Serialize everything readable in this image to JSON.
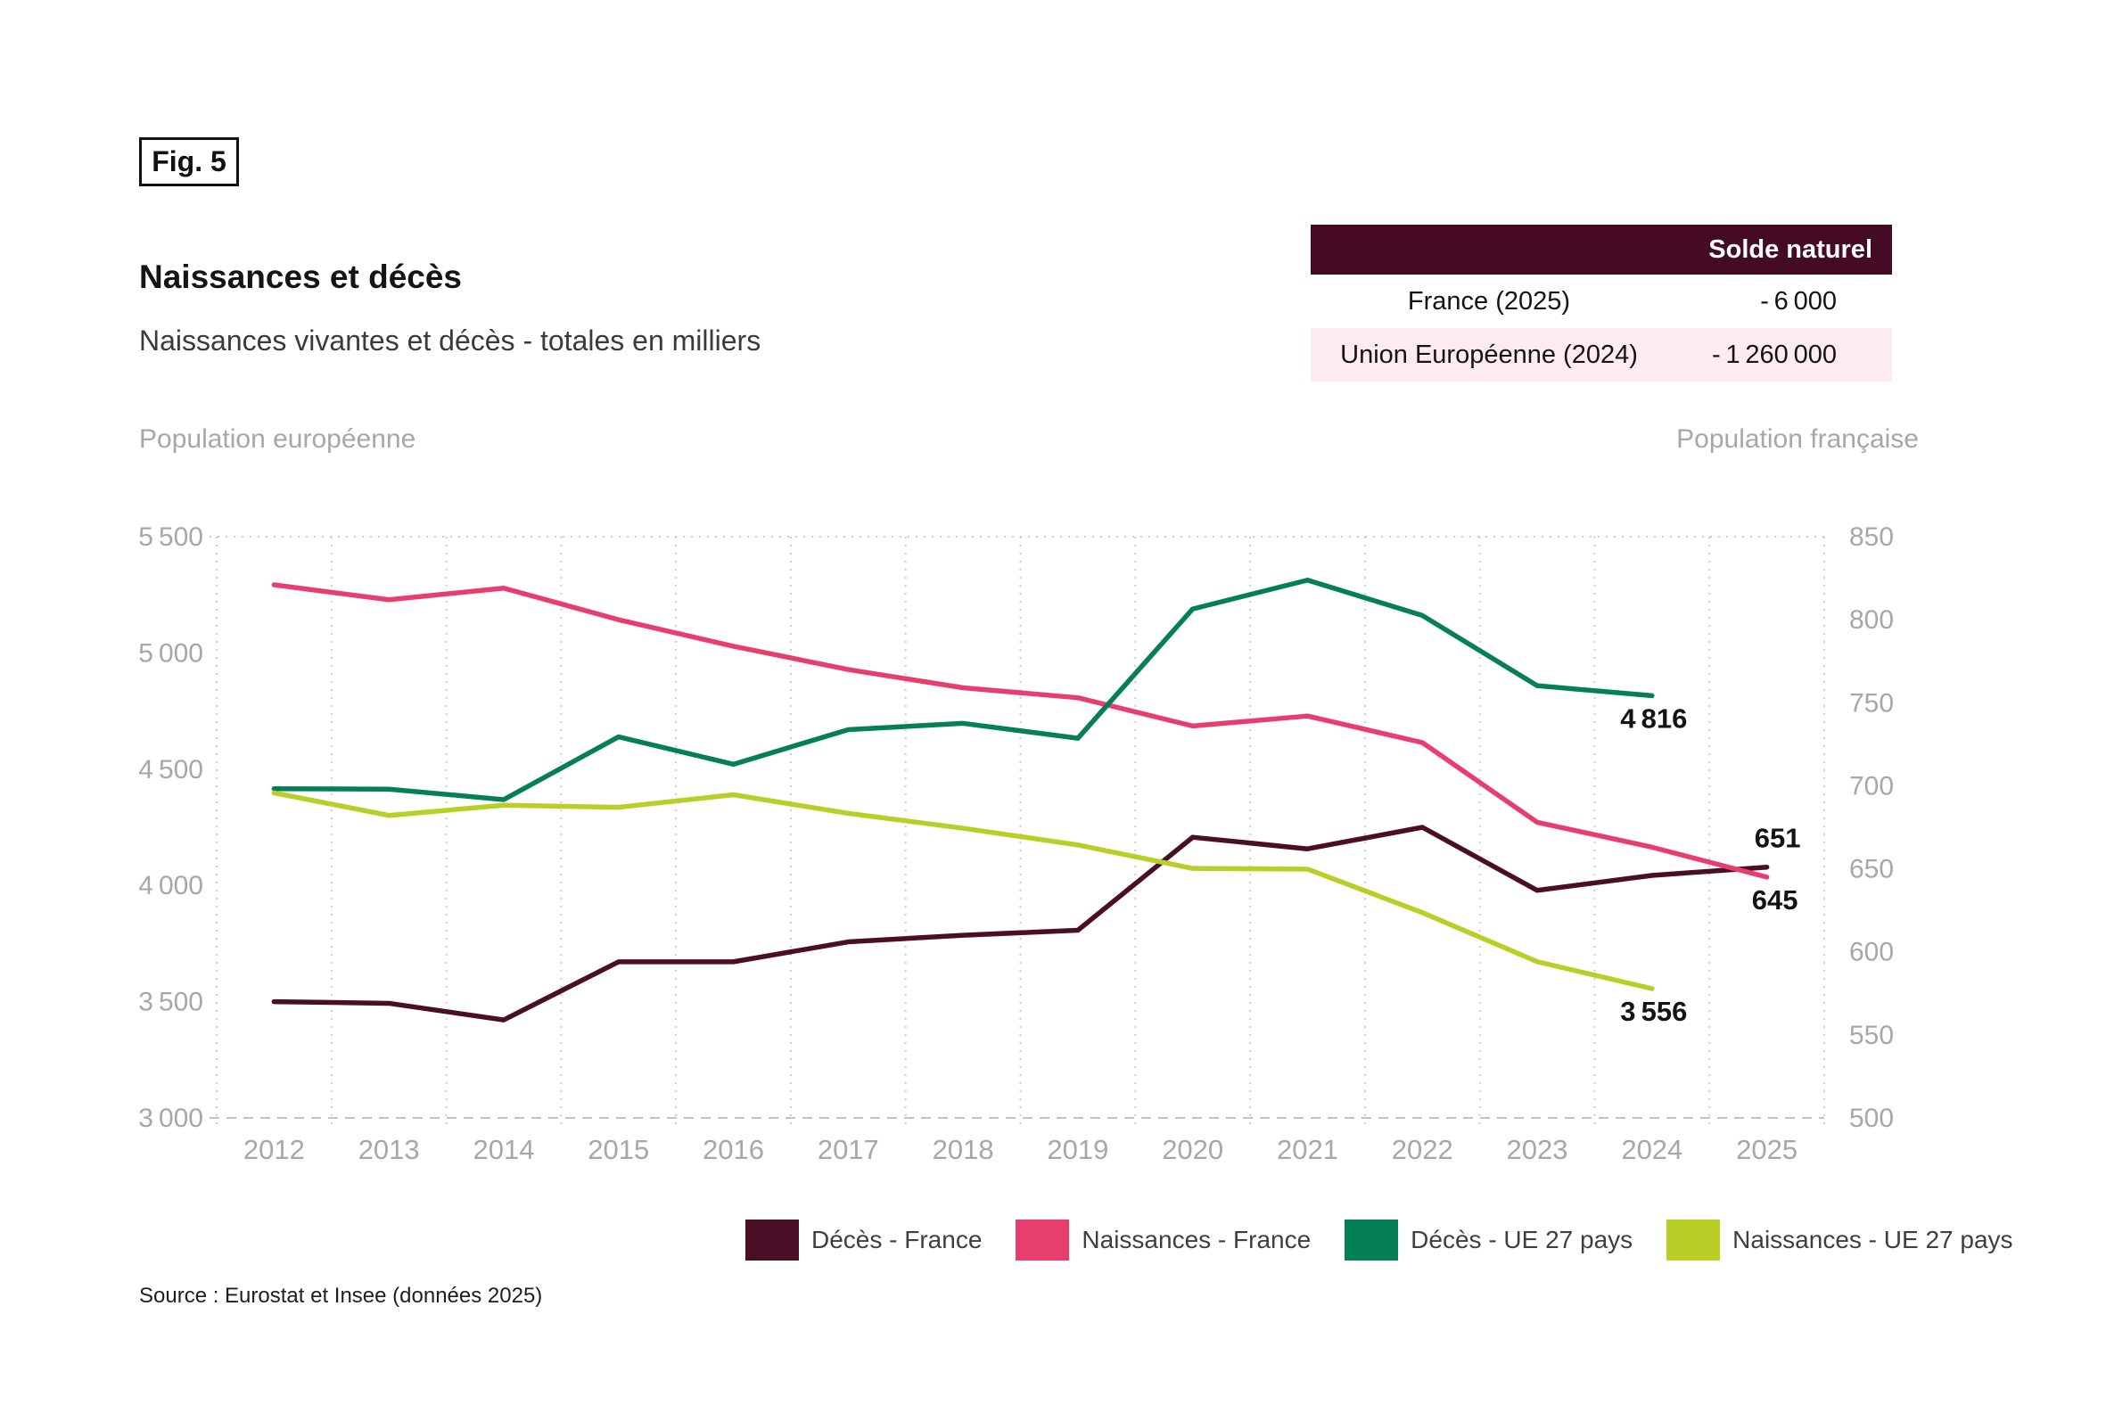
{
  "figure_tag": "Fig. 5",
  "title": "Naissances et décès",
  "subtitle": "Naissances vivantes et décès - totales en milliers",
  "table": {
    "header": "Solde naturel",
    "rows": [
      {
        "label": "France (2025)",
        "value": "- 6 000"
      },
      {
        "label": "Union Européenne (2024)",
        "value": "- 1 260 000"
      }
    ],
    "header_bg": "#450b25",
    "alt_row_bg": "#fdecef"
  },
  "source": "Source : Eurostat et Insee (données 2025)",
  "chart_data": {
    "type": "line",
    "x": [
      "2012",
      "2013",
      "2014",
      "2015",
      "2016",
      "2017",
      "2018",
      "2019",
      "2020",
      "2021",
      "2022",
      "2023",
      "2024",
      "2025"
    ],
    "left_axis": {
      "label": "Population européenne",
      "min": 3000,
      "max": 5500,
      "tick_values": [
        5500,
        5000,
        4500,
        4000,
        3500,
        3000
      ],
      "tick_labels": [
        "5 500",
        "5 000",
        "4 500",
        "4 000",
        "3 500",
        "3 000"
      ]
    },
    "right_axis": {
      "label": "Population française",
      "min": 500,
      "max": 850,
      "tick_values": [
        850,
        800,
        750,
        700,
        650,
        600,
        550,
        500
      ],
      "tick_labels": [
        "850",
        "800",
        "750",
        "700",
        "650",
        "600",
        "550",
        "500"
      ]
    },
    "grid": "vertical-dotted, top and bottom horizontal dashed",
    "legend_position": "bottom",
    "series": [
      {
        "id": "deces-france",
        "name": "Décès - France",
        "axis": "right",
        "color": "#4b0e27",
        "values": [
          570,
          569,
          559,
          594,
          594,
          606,
          610,
          613,
          669,
          662,
          675,
          637,
          646,
          651
        ],
        "end_label": "651"
      },
      {
        "id": "naissances-france",
        "name": "Naissances - France",
        "axis": "right",
        "color": "#e83e6e",
        "values": [
          821,
          812,
          819,
          800,
          784,
          770,
          759,
          753,
          736,
          742,
          726,
          678,
          663,
          645
        ],
        "end_label": "645"
      },
      {
        "id": "deces-ue-27-pays",
        "name": "Décès - UE 27 pays",
        "axis": "left",
        "color": "#057f55",
        "values": [
          4416,
          4414,
          4369,
          4639,
          4521,
          4670,
          4697,
          4633,
          5189,
          5313,
          5161,
          4859,
          4816
        ],
        "end_label": "4 816"
      },
      {
        "id": "naissances-ue-27-pays",
        "name": "Naissances - UE 27 pays",
        "axis": "left",
        "color": "#b9cf25",
        "values": [
          4398,
          4301,
          4345,
          4336,
          4390,
          4310,
          4246,
          4174,
          4073,
          4070,
          3883,
          3672,
          3556
        ],
        "end_label": "3 556"
      }
    ]
  }
}
